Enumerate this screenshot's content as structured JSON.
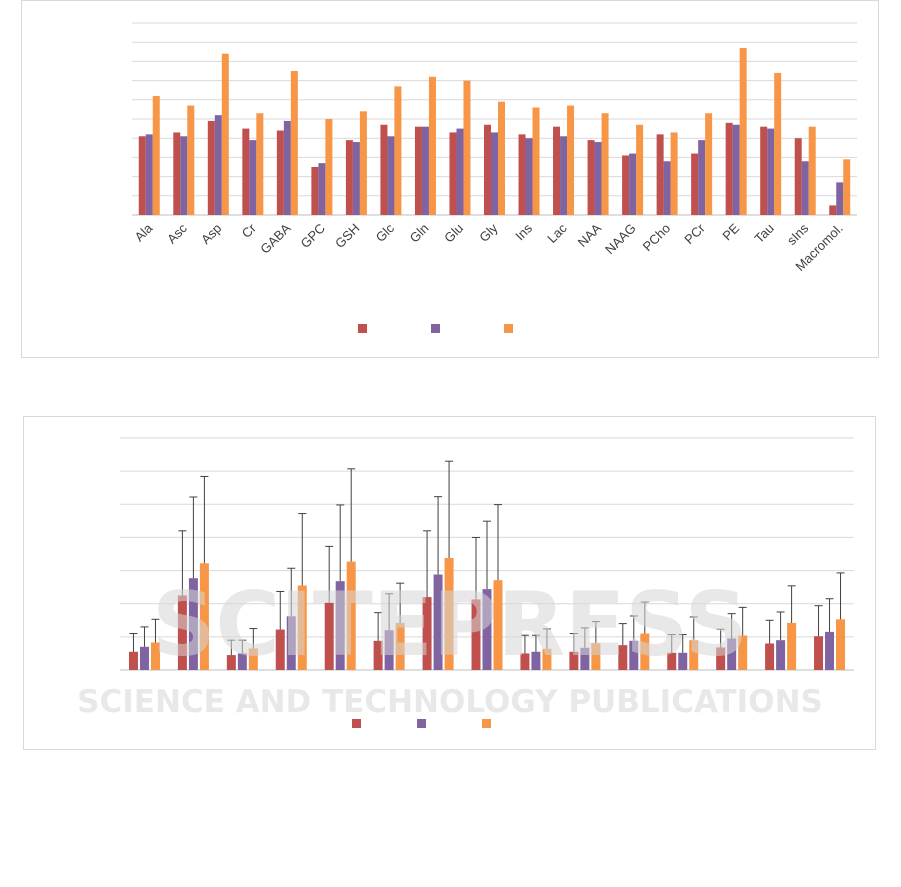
{
  "colors": {
    "series1": "#c0504d",
    "series2": "#8064a2",
    "series3": "#f79646",
    "grid": "#d9d9d9",
    "axis": "#bfbfbf",
    "error_bar": "#404040",
    "watermark": "#d6d6d6"
  },
  "watermark": {
    "line1": "SCITEPRESS",
    "line2": "SCIENCE AND TECHNOLOGY PUBLICATIONS"
  },
  "chart_data": [
    {
      "type": "bar",
      "title": "",
      "xlabel": "",
      "ylabel": "",
      "ylim": [
        0,
        10
      ],
      "grid": true,
      "legend": "bottom-center",
      "categories": [
        "Ala",
        "Asc",
        "Asp",
        "Cr",
        "GABA",
        "GPC",
        "GSH",
        "Glc",
        "Gln",
        "Glu",
        "Gly",
        "Ins",
        "Lac",
        "NAA",
        "NAAG",
        "PCho",
        "PCr",
        "PE",
        "Tau",
        "sIns",
        "Macromol."
      ],
      "series": [
        {
          "values": [
            4.1,
            4.3,
            4.9,
            4.5,
            4.4,
            2.5,
            3.9,
            4.7,
            4.6,
            4.3,
            4.7,
            4.2,
            4.6,
            3.9,
            3.1,
            4.2,
            3.2,
            4.8,
            4.6,
            4.0,
            0.5
          ]
        },
        {
          "values": [
            4.2,
            4.1,
            5.2,
            3.9,
            4.9,
            2.7,
            3.8,
            4.1,
            4.6,
            4.5,
            4.3,
            4.0,
            4.1,
            3.8,
            3.2,
            2.8,
            3.9,
            4.7,
            4.5,
            2.8,
            1.7
          ]
        },
        {
          "values": [
            6.2,
            5.7,
            8.4,
            5.3,
            7.5,
            5.0,
            5.4,
            6.7,
            7.2,
            7.0,
            5.9,
            5.6,
            5.7,
            5.3,
            4.7,
            4.3,
            5.3,
            8.7,
            7.4,
            4.6,
            2.9
          ]
        }
      ]
    },
    {
      "type": "bar",
      "title": "",
      "xlabel": "",
      "ylabel": "",
      "ylim": [
        0,
        7
      ],
      "grid": true,
      "legend": "bottom-center",
      "categories": [
        "",
        "",
        "",
        "",
        "",
        "",
        "",
        "",
        "",
        "",
        "",
        "",
        "",
        "",
        ""
      ],
      "series": [
        {
          "values": [
            0.55,
            2.25,
            0.45,
            1.22,
            2.03,
            0.88,
            2.2,
            2.13,
            0.5,
            0.55,
            0.75,
            0.52,
            0.68,
            0.8,
            1.02
          ],
          "errors": [
            0.55,
            1.95,
            0.45,
            1.15,
            1.7,
            0.85,
            2.0,
            1.87,
            0.55,
            0.55,
            0.65,
            0.55,
            0.55,
            0.7,
            0.92
          ]
        },
        {
          "values": [
            0.7,
            2.77,
            0.5,
            1.62,
            2.68,
            1.2,
            2.88,
            2.44,
            0.55,
            0.67,
            0.88,
            0.52,
            0.95,
            0.9,
            1.15
          ],
          "errors": [
            0.6,
            2.45,
            0.4,
            1.45,
            2.3,
            1.1,
            2.35,
            2.05,
            0.5,
            0.6,
            0.75,
            0.55,
            0.75,
            0.85,
            1.0
          ]
        },
        {
          "values": [
            0.83,
            3.22,
            0.65,
            2.55,
            3.27,
            1.42,
            3.38,
            2.71,
            0.64,
            0.81,
            1.1,
            0.9,
            1.04,
            1.42,
            1.53
          ],
          "errors": [
            0.7,
            2.62,
            0.6,
            2.17,
            2.8,
            1.2,
            2.92,
            2.28,
            0.6,
            0.65,
            0.95,
            0.7,
            0.85,
            1.12,
            1.4
          ]
        }
      ]
    }
  ]
}
